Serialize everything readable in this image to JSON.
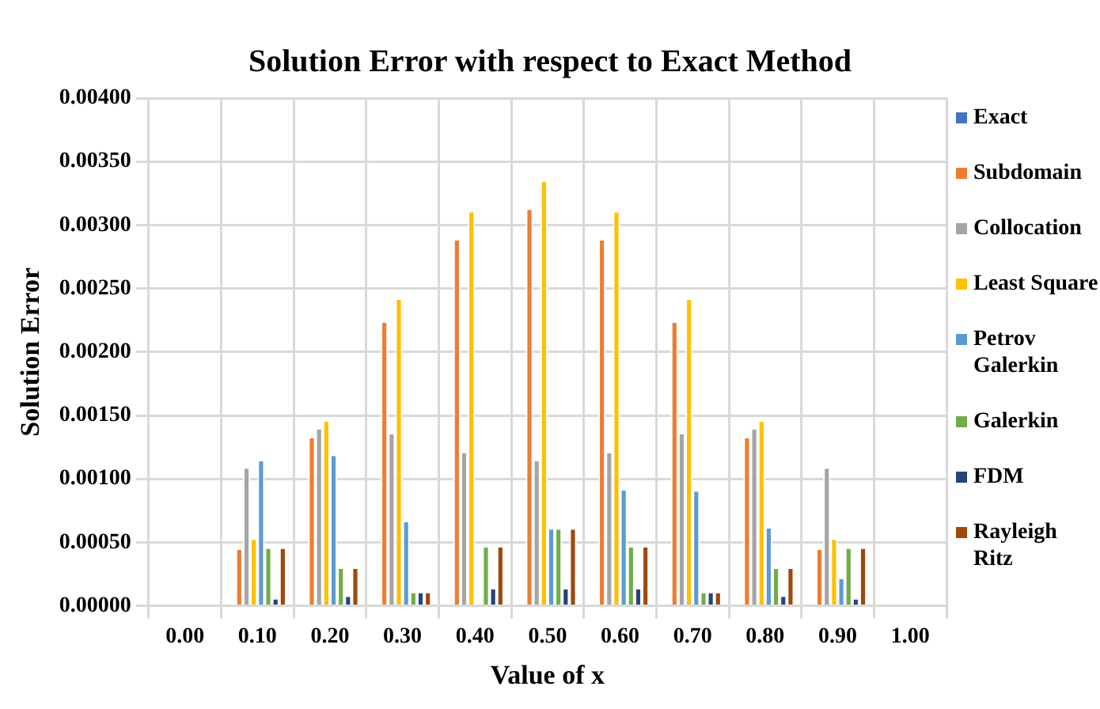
{
  "chart_data": {
    "type": "bar",
    "title": "Solution Error with respect to Exact Method",
    "xlabel": "Value of x",
    "ylabel": "Solution Error",
    "categories": [
      "0.00",
      "0.10",
      "0.20",
      "0.30",
      "0.40",
      "0.50",
      "0.60",
      "0.70",
      "0.80",
      "0.90",
      "1.00"
    ],
    "series": [
      {
        "name": "Exact",
        "color": "#4472c4",
        "values": [
          0,
          0,
          0,
          0,
          0,
          0,
          0,
          0,
          0,
          0,
          0
        ]
      },
      {
        "name": "Subdomain",
        "color": "#ed7d31",
        "values": [
          0,
          0.00044,
          0.00132,
          0.00223,
          0.00288,
          0.00312,
          0.00288,
          0.00223,
          0.00132,
          0.00044,
          0
        ]
      },
      {
        "name": "Collocation",
        "color": "#a5a5a5",
        "values": [
          0,
          0.00108,
          0.00139,
          0.00135,
          0.0012,
          0.00114,
          0.0012,
          0.00135,
          0.00139,
          0.00108,
          0
        ]
      },
      {
        "name": "Least Square",
        "color": "#ffc000",
        "values": [
          0,
          0.00052,
          0.00145,
          0.00241,
          0.0031,
          0.00334,
          0.0031,
          0.00241,
          0.00145,
          0.00052,
          0
        ]
      },
      {
        "name": "Petrov Galerkin",
        "color": "#5b9bd5",
        "values": [
          0,
          0.00114,
          0.00118,
          0.00066,
          0,
          0.0006,
          0.00091,
          0.0009,
          0.00061,
          0.00021,
          0
        ]
      },
      {
        "name": "Galerkin",
        "color": "#70ad47",
        "values": [
          0,
          0.00045,
          0.00029,
          0.0001,
          0.00046,
          0.0006,
          0.00046,
          0.0001,
          0.00029,
          0.00045,
          0
        ]
      },
      {
        "name": "FDM",
        "color": "#264478",
        "values": [
          0,
          5e-05,
          7e-05,
          0.0001,
          0.00013,
          0.00013,
          0.00013,
          0.0001,
          7e-05,
          5e-05,
          0
        ]
      },
      {
        "name": "Rayleigh Ritz",
        "color": "#9e480e",
        "values": [
          0,
          0.00045,
          0.00029,
          0.0001,
          0.00046,
          0.0006,
          0.00046,
          0.0001,
          0.00029,
          0.00045,
          0
        ]
      }
    ],
    "ylim": [
      0,
      0.004
    ],
    "yticks": [
      {
        "value": 0,
        "label": "0.00000"
      },
      {
        "value": 0.0005,
        "label": "0.00050"
      },
      {
        "value": 0.001,
        "label": "0.00100"
      },
      {
        "value": 0.0015,
        "label": "0.00150"
      },
      {
        "value": 0.002,
        "label": "0.00200"
      },
      {
        "value": 0.0025,
        "label": "0.00250"
      },
      {
        "value": 0.003,
        "label": "0.00300"
      },
      {
        "value": 0.0035,
        "label": "0.00350"
      },
      {
        "value": 0.004,
        "label": "0.00400"
      }
    ],
    "grid": true,
    "legend": "right"
  }
}
